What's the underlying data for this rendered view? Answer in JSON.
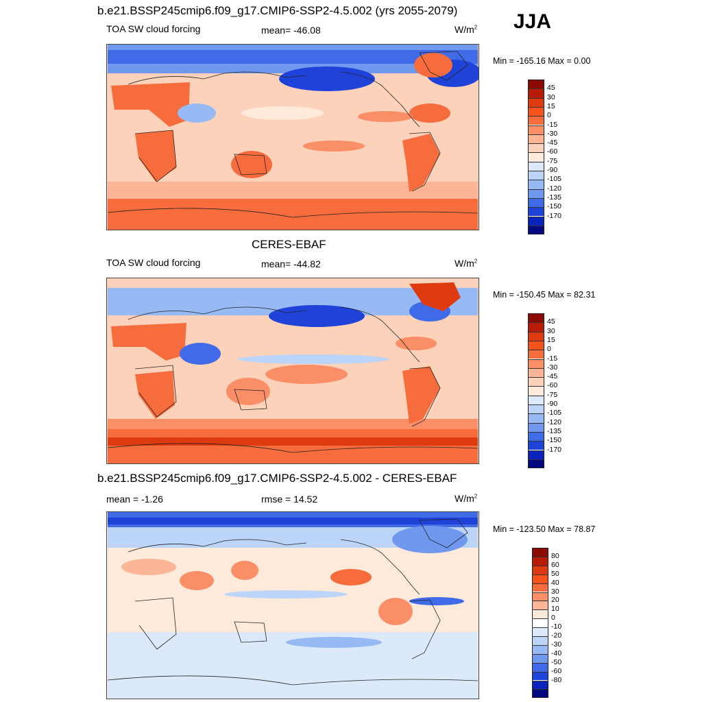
{
  "season": "JJA",
  "chart_data": [
    {
      "type": "heatmap",
      "title": "b.e21.BSSP245cmip6.f09_g17.CMIP6-SSP2-4.5.002 (yrs 2055-2079)",
      "left_label": "TOA SW cloud forcing",
      "center_label": "mean= -46.08",
      "units": "W/m",
      "units_exp": "2",
      "stats": "Min = -165.16 Max =   0.00",
      "colorbar": {
        "levels": [
          "45",
          "30",
          "15",
          "0",
          "-15",
          "-30",
          "-45",
          "-60",
          "-75",
          "-90",
          "-105",
          "-120",
          "-135",
          "-150",
          "-170"
        ],
        "colors": [
          "#8b0a04",
          "#b81c08",
          "#dd3a10",
          "#f4531e",
          "#f76c3d",
          "#fa8e66",
          "#fcb596",
          "#fcd2bb",
          "#fdeada",
          "#dce9fb",
          "#bcd4f8",
          "#98baf4",
          "#7098ef",
          "#3f6ae8",
          "#1f43d8",
          "#0b24bd",
          "#02097e"
        ]
      }
    },
    {
      "type": "heatmap",
      "title": "CERES-EBAF",
      "left_label": "TOA SW cloud forcing",
      "center_label": "mean= -44.82",
      "units": "W/m",
      "units_exp": "2",
      "stats": "Min = -150.45 Max =  82.31",
      "colorbar": {
        "levels": [
          "45",
          "30",
          "15",
          "0",
          "-15",
          "-30",
          "-45",
          "-60",
          "-75",
          "-90",
          "-105",
          "-120",
          "-135",
          "-150",
          "-170"
        ],
        "colors": [
          "#8b0a04",
          "#b81c08",
          "#dd3a10",
          "#f4531e",
          "#f76c3d",
          "#fa8e66",
          "#fcb596",
          "#fcd2bb",
          "#fdeada",
          "#dce9fb",
          "#bcd4f8",
          "#98baf4",
          "#7098ef",
          "#3f6ae8",
          "#1f43d8",
          "#0b24bd",
          "#02097e"
        ]
      }
    },
    {
      "type": "heatmap",
      "title": "b.e21.BSSP245cmip6.f09_g17.CMIP6-SSP2-4.5.002 - CERES-EBAF",
      "left_label": "mean =  -1.26",
      "center_label": "rmse =  14.52",
      "units": "W/m",
      "units_exp": "2",
      "stats": "Min = -123.50 Max =  78.87",
      "colorbar": {
        "levels": [
          "80",
          "60",
          "50",
          "40",
          "30",
          "20",
          "10",
          "0",
          "-10",
          "-20",
          "-30",
          "-40",
          "-50",
          "-60",
          "-80"
        ],
        "colors": [
          "#8b0a04",
          "#b81c08",
          "#dd3a10",
          "#f4531e",
          "#f76c3d",
          "#fa8e66",
          "#fcb596",
          "#fdeada",
          "#ffffff",
          "#dce9fb",
          "#bcd4f8",
          "#98baf4",
          "#7098ef",
          "#3f6ae8",
          "#1f43d8",
          "#0b24bd",
          "#02097e"
        ]
      }
    }
  ]
}
